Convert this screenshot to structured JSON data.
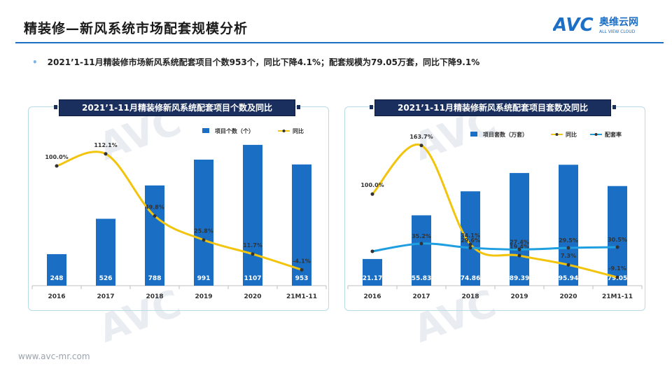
{
  "header": {
    "title": "精装修—新风系统市场配套规模分析"
  },
  "logo": {
    "mark": "AVC",
    "name": "奥维云网",
    "tagline": "ALL VIEW CLOUD"
  },
  "summary": "2021’1-11月精装修市场新风系统配套项目个数953个，同比下降4.1%；配套规模为79.05万套，同比下降9.1%",
  "footer": {
    "url": "www.avc-mr.com"
  },
  "colors": {
    "bar": "#1a6fc4",
    "yoy": "#f2c40c",
    "rate": "#1f9ee0",
    "title_bg": "#1a2f5e"
  },
  "chart_data": [
    {
      "type": "bar",
      "title": "2021’1-11月精装修新风系统配套项目个数及同比",
      "categories": [
        "2016",
        "2017",
        "2018",
        "2019",
        "2020",
        "21M1-11"
      ],
      "series": [
        {
          "name": "项目个数（个）",
          "type": "bar",
          "values": [
            248,
            526,
            788,
            991,
            1107,
            953
          ],
          "labels": [
            "248",
            "526",
            "788",
            "991",
            "1107",
            "953"
          ]
        },
        {
          "name": "同比",
          "type": "line",
          "values": [
            100.0,
            112.1,
            49.8,
            25.8,
            11.7,
            -4.1
          ],
          "labels": [
            "100.0%",
            "112.1%",
            "49.8%",
            "25.8%",
            "11.7%",
            "-4.1%"
          ]
        }
      ],
      "legend": "top-right",
      "grid": false
    },
    {
      "type": "bar",
      "title": "2021’1-11月精装修新风系统配套项目套数及同比",
      "categories": [
        "2016",
        "2017",
        "2018",
        "2019",
        "2020",
        "21M1-11"
      ],
      "series": [
        {
          "name": "项目套数（万套）",
          "type": "bar",
          "values": [
            21.17,
            55.83,
            74.86,
            89.39,
            95.94,
            79.05
          ],
          "labels": [
            "21.17",
            "55.83",
            "74.86",
            "89.39",
            "95.94",
            "79.05"
          ]
        },
        {
          "name": "同比",
          "type": "line",
          "values": [
            100.0,
            163.7,
            34.1,
            19.4,
            7.3,
            -9.1
          ],
          "labels": [
            "100.0%",
            "163.7%",
            "34.1%",
            "19.4%",
            "7.3%",
            "-9.1%"
          ]
        },
        {
          "name": "配套率",
          "type": "line",
          "values": [
            25.0,
            35.2,
            29.6,
            27.4,
            29.5,
            30.5
          ],
          "labels": [
            "",
            "35.2%",
            "29.6%",
            "27.4%",
            "29.5%",
            "30.5%"
          ]
        }
      ],
      "legend": "top-right",
      "grid": false
    }
  ]
}
